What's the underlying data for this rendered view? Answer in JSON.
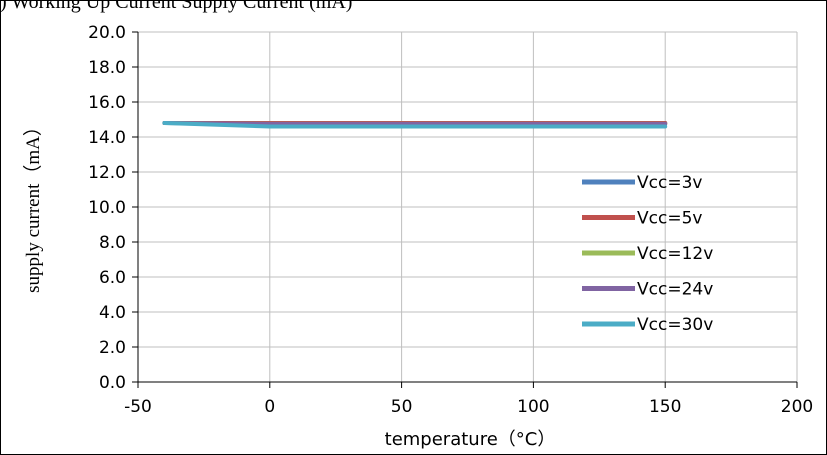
{
  "caption": ") Working Up Current Supply Current (mA)",
  "chart_data": {
    "type": "line",
    "xlabel": "temperature（°C）",
    "ylabel": "supply current（mA）",
    "xlim": [
      -50,
      200
    ],
    "ylim": [
      0,
      20
    ],
    "x_ticks": [
      -50,
      0,
      50,
      100,
      150,
      200
    ],
    "y_ticks": [
      "0.0",
      "2.0",
      "4.0",
      "6.0",
      "8.0",
      "10.0",
      "12.0",
      "14.0",
      "16.0",
      "18.0",
      "20.0"
    ],
    "grid": true,
    "legend_position": "right",
    "series": [
      {
        "name": "Vcc=3v",
        "color": "#4f81bd",
        "points": [
          [
            -40,
            14.8
          ],
          [
            0,
            14.8
          ],
          [
            25,
            14.8
          ],
          [
            85,
            14.8
          ],
          [
            150,
            14.8
          ]
        ]
      },
      {
        "name": "Vcc=5v",
        "color": "#c0504d",
        "points": [
          [
            -40,
            14.8
          ],
          [
            0,
            14.8
          ],
          [
            25,
            14.8
          ],
          [
            85,
            14.8
          ],
          [
            150,
            14.8
          ]
        ]
      },
      {
        "name": "Vcc=12v",
        "color": "#9bbb59",
        "points": [
          [
            -40,
            14.8
          ],
          [
            0,
            14.75
          ],
          [
            25,
            14.75
          ],
          [
            85,
            14.75
          ],
          [
            150,
            14.75
          ]
        ]
      },
      {
        "name": "Vcc=24v",
        "color": "#8064a2",
        "points": [
          [
            -40,
            14.8
          ],
          [
            0,
            14.75
          ],
          [
            25,
            14.75
          ],
          [
            85,
            14.75
          ],
          [
            150,
            14.75
          ]
        ]
      },
      {
        "name": "Vcc=30v",
        "color": "#4bacc6",
        "points": [
          [
            -40,
            14.8
          ],
          [
            0,
            14.6
          ],
          [
            25,
            14.6
          ],
          [
            85,
            14.6
          ],
          [
            150,
            14.6
          ]
        ]
      }
    ]
  }
}
